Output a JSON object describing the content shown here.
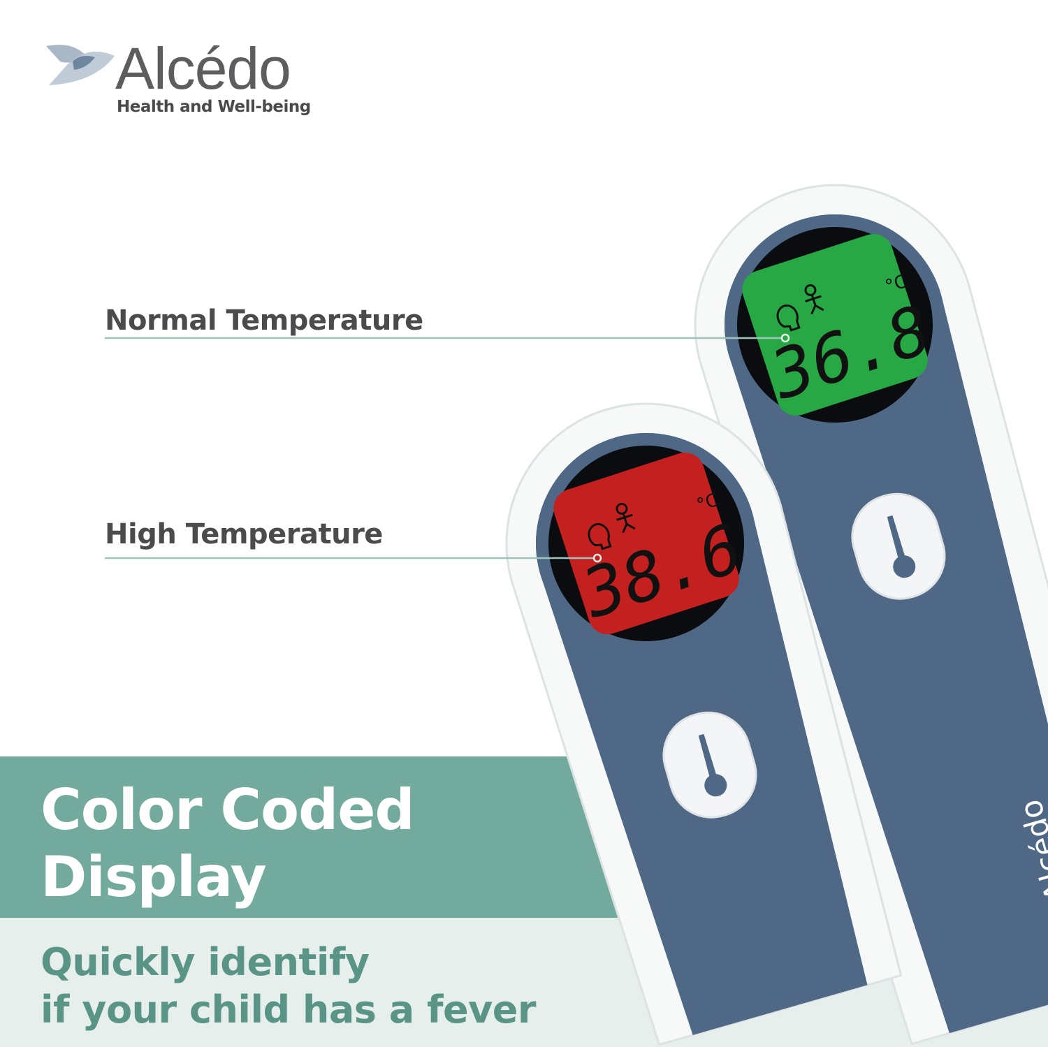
{
  "brand": {
    "name": "Alcédo",
    "tagline": "Health and Well-being"
  },
  "labels": {
    "normal": "Normal Temperature",
    "high": "High Temperature"
  },
  "headline": {
    "line1": "Color Coded",
    "line2": "Display"
  },
  "subheadline": {
    "line1": "Quickly identify",
    "line2": "if your child has a fever"
  },
  "thermometers": [
    {
      "reading": "36.8",
      "unit": "°C",
      "display_color": "#27a844",
      "state": "normal"
    },
    {
      "reading": "38.6",
      "unit": "°C",
      "display_color": "#c4201f",
      "state": "high"
    }
  ],
  "device_brand": "Alcédo",
  "colors": {
    "teal": "#72aa9e",
    "light_band": "#e7efed",
    "body_blue": "#4f6886",
    "text_dark": "#4b4b4d",
    "leader_line": "#9fc3bb"
  },
  "icons": [
    "forehead-icon",
    "baby-icon",
    "thermometer-button-icon"
  ]
}
